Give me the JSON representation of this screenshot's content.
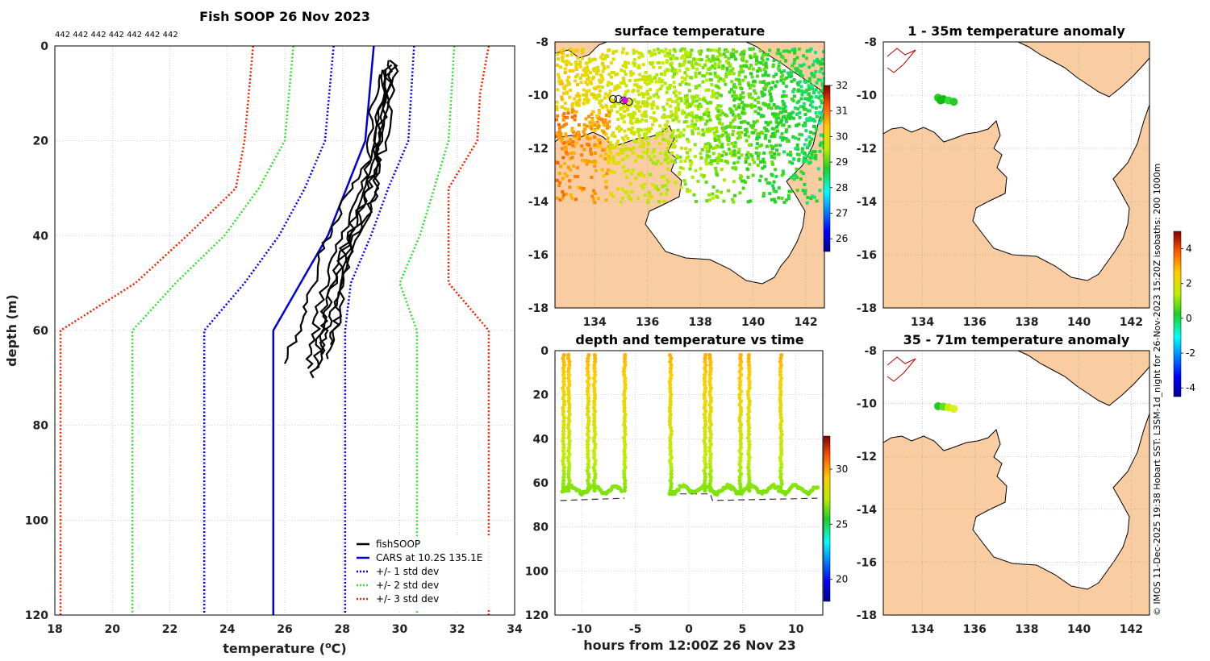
{
  "chart_data": [
    {
      "type": "line",
      "id": "profile",
      "title": "Fish SOOP 26 Nov 2023",
      "profile_ids": "442 442 442 442 442 442 442",
      "xlabel": "temperature (°C)",
      "ylabel": "depth (m)",
      "xlim": [
        18,
        34
      ],
      "ylim": [
        0,
        120
      ],
      "xticks": [
        "18",
        "20",
        "22",
        "24",
        "26",
        "28",
        "30",
        "32",
        "34"
      ],
      "yticks": [
        "0",
        "20",
        "40",
        "60",
        "80",
        "100",
        "120"
      ],
      "grid": true,
      "legend_position": "lower-right",
      "series": [
        {
          "name": "fishSOOP",
          "color": "#000000",
          "style": "solid",
          "profiles": [
            [
              [
                29.8,
                3
              ],
              [
                29.6,
                10
              ],
              [
                29.3,
                20
              ],
              [
                29.2,
                30
              ],
              [
                28.9,
                35
              ],
              [
                28.4,
                40
              ],
              [
                28.0,
                50
              ],
              [
                27.8,
                60
              ],
              [
                27.5,
                66
              ]
            ],
            [
              [
                29.6,
                4
              ],
              [
                29.4,
                12
              ],
              [
                29.1,
                22
              ],
              [
                28.6,
                30
              ],
              [
                28.1,
                38
              ],
              [
                27.6,
                46
              ],
              [
                27.2,
                55
              ],
              [
                27.0,
                62
              ],
              [
                26.8,
                68
              ]
            ],
            [
              [
                29.4,
                5
              ],
              [
                29.3,
                15
              ],
              [
                29.2,
                25
              ],
              [
                28.8,
                32
              ],
              [
                28.2,
                40
              ],
              [
                27.8,
                48
              ],
              [
                27.4,
                56
              ],
              [
                27.2,
                63
              ],
              [
                27.0,
                70
              ]
            ],
            [
              [
                29.2,
                6
              ],
              [
                29.0,
                14
              ],
              [
                28.9,
                24
              ],
              [
                28.3,
                30
              ],
              [
                27.6,
                38
              ],
              [
                27.2,
                45
              ],
              [
                26.8,
                54
              ],
              [
                26.5,
                60
              ],
              [
                26.0,
                67
              ]
            ],
            [
              [
                29.9,
                4
              ],
              [
                29.7,
                12
              ],
              [
                29.4,
                22
              ],
              [
                29.0,
                28
              ],
              [
                28.6,
                36
              ],
              [
                28.2,
                44
              ],
              [
                27.9,
                52
              ],
              [
                27.8,
                58
              ],
              [
                27.6,
                63
              ]
            ],
            [
              [
                29.5,
                5
              ],
              [
                29.4,
                15
              ],
              [
                29.3,
                25
              ],
              [
                29.0,
                33
              ],
              [
                28.5,
                41
              ],
              [
                28.0,
                48
              ],
              [
                27.6,
                56
              ],
              [
                27.3,
                62
              ],
              [
                27.1,
                68
              ]
            ],
            [
              [
                29.7,
                3
              ],
              [
                29.5,
                10
              ],
              [
                29.2,
                20
              ],
              [
                28.9,
                30
              ],
              [
                28.4,
                38
              ],
              [
                27.9,
                46
              ],
              [
                27.5,
                54
              ],
              [
                27.4,
                60
              ],
              [
                27.3,
                65
              ]
            ]
          ]
        },
        {
          "name": "CARS at 10.2S 135.1E",
          "color": "#0000dd",
          "style": "solid",
          "points": [
            [
              29.1,
              0
            ],
            [
              28.8,
              20
            ],
            [
              27.5,
              40
            ],
            [
              25.6,
              60
            ],
            [
              25.6,
              120
            ]
          ]
        },
        {
          "name": "+/- 1 std dev",
          "color": "#0000ee",
          "style": "dotted",
          "lower": [
            [
              27.7,
              0
            ],
            [
              27.4,
              20
            ],
            [
              26.7,
              30
            ],
            [
              25.8,
              40
            ],
            [
              24.6,
              50
            ],
            [
              23.2,
              60
            ],
            [
              23.2,
              120
            ]
          ],
          "upper": [
            [
              30.5,
              0
            ],
            [
              30.3,
              20
            ],
            [
              29.6,
              30
            ],
            [
              29.0,
              40
            ],
            [
              28.3,
              50
            ],
            [
              28.1,
              60
            ],
            [
              28.1,
              120
            ]
          ]
        },
        {
          "name": "+/- 2 std dev",
          "color": "#33dd33",
          "style": "dotted",
          "lower": [
            [
              26.3,
              0
            ],
            [
              26.0,
              20
            ],
            [
              25.1,
              30
            ],
            [
              23.9,
              40
            ],
            [
              22.2,
              50
            ],
            [
              20.7,
              60
            ],
            [
              20.7,
              120
            ]
          ],
          "upper": [
            [
              31.9,
              0
            ],
            [
              31.7,
              20
            ],
            [
              31.2,
              30
            ],
            [
              30.7,
              40
            ],
            [
              30.0,
              50
            ],
            [
              30.6,
              60
            ],
            [
              30.6,
              120
            ]
          ]
        },
        {
          "name": "+/- 3 std dev",
          "color": "#ee2200",
          "style": "dotted",
          "lower": [
            [
              24.9,
              0
            ],
            [
              24.6,
              20
            ],
            [
              24.3,
              30
            ],
            [
              22.6,
              40
            ],
            [
              20.8,
              50
            ],
            [
              18.2,
              60
            ],
            [
              18.2,
              120
            ]
          ],
          "upper": [
            [
              33.1,
              0
            ],
            [
              32.8,
              10
            ],
            [
              32.7,
              20
            ],
            [
              31.7,
              30
            ],
            [
              31.7,
              40
            ],
            [
              31.7,
              50
            ],
            [
              33.1,
              60
            ],
            [
              33.1,
              120
            ]
          ]
        }
      ]
    },
    {
      "type": "heatmap",
      "id": "sst_map",
      "title": "surface temperature",
      "xlim": [
        132.5,
        142.7
      ],
      "ylim": [
        -18,
        -8
      ],
      "xticks": [
        "134",
        "136",
        "138",
        "140",
        "142"
      ],
      "yticks": [
        "-8",
        "-10",
        "-12",
        "-14",
        "-16",
        "-18"
      ],
      "colorbar": {
        "range": [
          25.5,
          32
        ],
        "ticks": [
          "32",
          "31",
          "30",
          "29",
          "28",
          "27",
          "26"
        ]
      },
      "markers": [
        {
          "lon": 134.7,
          "lat": -10.15
        },
        {
          "lon": 134.9,
          "lat": -10.15
        },
        {
          "lon": 135.1,
          "lat": -10.2
        },
        {
          "lon": 135.3,
          "lat": -10.25
        }
      ]
    },
    {
      "type": "scatter",
      "id": "depth_time",
      "title": "depth and temperature vs time",
      "xlabel": "hours from 12:00Z 26 Nov 23",
      "xlim": [
        -12.5,
        12.5
      ],
      "ylim": [
        0,
        120
      ],
      "xticks": [
        "-10",
        "-5",
        "0",
        "5",
        "10"
      ],
      "yticks": [
        "0",
        "20",
        "40",
        "60",
        "80",
        "100",
        "120"
      ],
      "colorbar": {
        "range": [
          18,
          33
        ],
        "ticks": [
          "30",
          "25",
          "20"
        ]
      },
      "tows": [
        {
          "start": -11.8,
          "end": -6.2,
          "casts": [
            -11.7,
            -11.2,
            -9.4,
            -8.8,
            -6.0
          ]
        },
        {
          "start": -1.8,
          "end": 12.0,
          "casts": [
            -1.7,
            1.5,
            2.0,
            4.8,
            5.6,
            8.6
          ]
        }
      ],
      "bottom": [
        [
          -12.0,
          68
        ],
        [
          -6.0,
          67
        ],
        [
          -1.8,
          65
        ],
        [
          2.0,
          65
        ],
        [
          2.2,
          68
        ],
        [
          12.0,
          67
        ]
      ]
    },
    {
      "type": "heatmap",
      "id": "anom_shallow",
      "title": "1 - 35m temperature anomaly",
      "xlim": [
        132.5,
        142.7
      ],
      "ylim": [
        -18,
        -8
      ],
      "xticks": [
        "134",
        "136",
        "138",
        "140",
        "142"
      ],
      "yticks": [
        "-8",
        "-10",
        "-12",
        "-14",
        "-16",
        "-18"
      ],
      "points": [
        [
          134.6,
          -10.1
        ],
        [
          134.8,
          -10.15
        ],
        [
          135.0,
          -10.2
        ],
        [
          135.2,
          -10.25
        ],
        [
          134.7,
          -10.2
        ]
      ],
      "colorbar": {
        "range": [
          -4.5,
          5
        ],
        "ticks": [
          "4",
          "2",
          "0",
          "-2",
          "-4"
        ]
      }
    },
    {
      "type": "heatmap",
      "id": "anom_deep",
      "title": "35 - 71m temperature anomaly",
      "xlim": [
        132.5,
        142.7
      ],
      "ylim": [
        -18,
        -8
      ],
      "xticks": [
        "134",
        "136",
        "138",
        "140",
        "142"
      ],
      "yticks": [
        "-8",
        "-10",
        "-12",
        "-14",
        "-16",
        "-18"
      ],
      "points": [
        [
          134.6,
          -10.1
        ],
        [
          134.8,
          -10.12
        ],
        [
          135.0,
          -10.15
        ],
        [
          135.2,
          -10.2
        ]
      ]
    }
  ],
  "credit": "© IMOS 11-Dec-2025 19:38 Hobart SST: L3SM-1d_night for 26-Nov-2023 15:20Z isobaths: 200  1000m",
  "colors": {
    "land": "#f9cda1",
    "coast": "#000000",
    "grid": "#bfbfbf"
  }
}
